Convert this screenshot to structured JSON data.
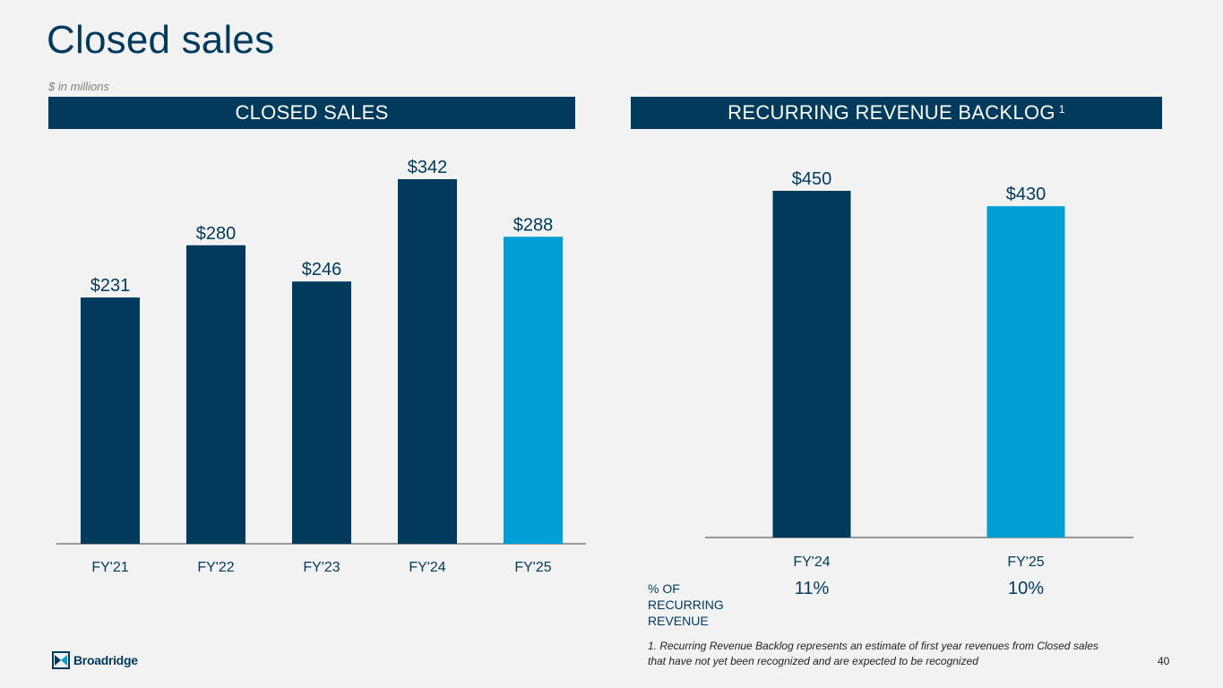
{
  "title": "Closed sales",
  "subtitle": "$ in millions",
  "left_header": "CLOSED SALES",
  "right_header": "RECURRING REVENUE BACKLOG",
  "right_header_sup": "1",
  "colors": {
    "navy": "#003a5c",
    "light_blue": "#00a0d6",
    "background": "#f2f2f2"
  },
  "chart_data": [
    {
      "type": "bar",
      "title": "CLOSED SALES",
      "categories": [
        "FY'21",
        "FY'22",
        "FY'23",
        "FY'24",
        "FY'25"
      ],
      "values": [
        231,
        280,
        246,
        342,
        288
      ],
      "labels": [
        "$231",
        "$280",
        "$246",
        "$342",
        "$288"
      ],
      "bar_colors": [
        "#003a5c",
        "#003a5c",
        "#003a5c",
        "#003a5c",
        "#00a0d6"
      ],
      "ylim": [
        0,
        342
      ],
      "grid": false
    },
    {
      "type": "bar",
      "title": "RECURRING REVENUE BACKLOG",
      "categories": [
        "FY'24",
        "FY'25"
      ],
      "values": [
        450,
        430
      ],
      "labels": [
        "$450",
        "$430"
      ],
      "bar_colors": [
        "#003a5c",
        "#00a0d6"
      ],
      "ylim": [
        0,
        450
      ],
      "grid": false
    }
  ],
  "pct_recurring": {
    "label_lines": [
      "% OF",
      "RECURRING",
      "REVENUE"
    ],
    "values": [
      "11%",
      "10%"
    ]
  },
  "footnote_lines": [
    "1. Recurring Revenue Backlog represents an estimate of first year revenues from Closed sales",
    "that have not yet been recognized and are expected to be recognized"
  ],
  "logo_text": "Broadridge",
  "page_number": "40"
}
